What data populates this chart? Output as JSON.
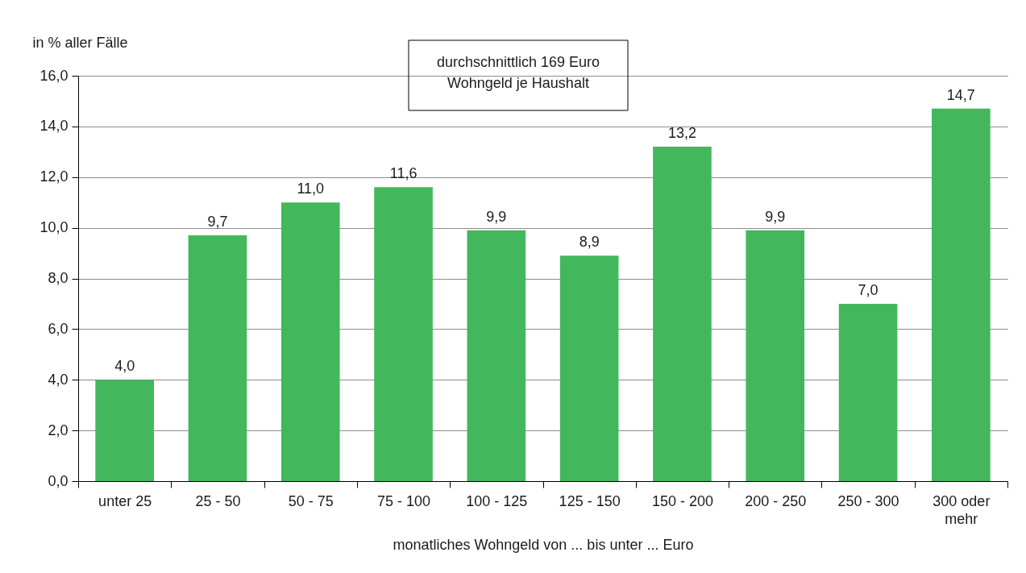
{
  "chart_data": {
    "type": "bar",
    "ylabel": "in % aller Fälle",
    "xlabel": "monatliches Wohngeld von ... bis unter ... Euro",
    "annotations": [
      "durchschnittlich 169 Euro Wohngeld je Haushalt"
    ],
    "categories": [
      "unter 25",
      "25 - 50",
      "50 - 75",
      "75 - 100",
      "100 - 125",
      "125 - 150",
      "150 - 200",
      "200 - 250",
      "250 - 300",
      "300 oder mehr"
    ],
    "values": [
      4.0,
      9.7,
      11.0,
      11.6,
      9.9,
      8.9,
      13.2,
      9.9,
      7.0,
      14.7
    ],
    "value_labels": [
      "4,0",
      "9,7",
      "11,0",
      "11,6",
      "9,9",
      "8,9",
      "13,2",
      "9,9",
      "7,0",
      "14,7"
    ],
    "color": "#43b75c",
    "ylim": [
      0,
      16
    ],
    "yticks": [
      {
        "value": 0,
        "label": "0,0"
      },
      {
        "value": 2,
        "label": "2,0"
      },
      {
        "value": 4,
        "label": "4,0"
      },
      {
        "value": 6,
        "label": "6,0"
      },
      {
        "value": 8,
        "label": "8,0"
      },
      {
        "value": 10,
        "label": "10,0"
      },
      {
        "value": 12,
        "label": "12,0"
      },
      {
        "value": 14,
        "label": "14,0"
      },
      {
        "value": 16,
        "label": "16,0"
      }
    ],
    "grid": "y"
  }
}
